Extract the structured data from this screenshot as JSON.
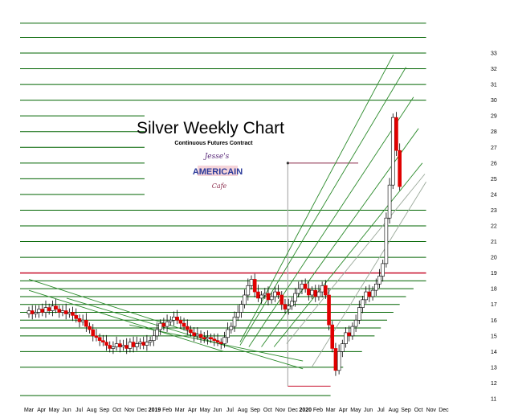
{
  "chart_data": {
    "type": "candlestick",
    "title": "Silver Weekly Chart",
    "subtitle": "Continuous Futures Contract",
    "logo": {
      "line1": "Jesse's",
      "line2": "AMERICAIN",
      "line3": "Cafe"
    },
    "y_axis": {
      "range": [
        11,
        33
      ],
      "ticks": [
        11,
        12,
        13,
        14,
        15,
        16,
        17,
        18,
        19,
        20,
        21,
        22,
        23,
        24,
        25,
        26,
        27,
        28,
        29,
        30,
        31,
        32,
        33
      ],
      "position": "right"
    },
    "x_axis": {
      "tick_labels": [
        "Mar",
        "Apr",
        "May",
        "Jun",
        "Jul",
        "Aug",
        "Sep",
        "Oct",
        "Nov",
        "Dec",
        "2019",
        "Feb",
        "Mar",
        "Apr",
        "May",
        "Jun",
        "Jul",
        "Aug",
        "Sep",
        "Oct",
        "Nov",
        "Dec",
        "2020",
        "Feb",
        "Mar",
        "Apr",
        "May",
        "Jun",
        "Jul",
        "Aug",
        "Sep",
        "Oct",
        "Nov",
        "Dec"
      ],
      "bold_labels": [
        "2019",
        "2020"
      ],
      "months_per_label": 1
    },
    "grid": false,
    "colors": {
      "up": "#ffffff",
      "down": "#e00000",
      "wick": "#000000",
      "level_line": "#006400",
      "resistance": "#c8102e",
      "marker": "#b0b0b0"
    },
    "weekly_closes": [
      16.6,
      16.4,
      16.5,
      16.7,
      16.5,
      16.8,
      16.6,
      16.9,
      16.7,
      16.5,
      16.6,
      16.4,
      16.5,
      16.3,
      16.1,
      15.9,
      16.0,
      15.6,
      15.4,
      15.0,
      14.9,
      14.7,
      14.6,
      14.4,
      14.2,
      14.3,
      14.5,
      14.3,
      14.4,
      14.2,
      14.6,
      14.3,
      14.5,
      14.6,
      14.4,
      14.6,
      14.7,
      15.0,
      15.4,
      15.8,
      15.6,
      15.9,
      16.0,
      16.2,
      16.0,
      15.8,
      15.6,
      15.4,
      15.2,
      15.0,
      15.1,
      14.9,
      14.8,
      14.9,
      14.8,
      14.7,
      14.6,
      14.5,
      14.9,
      15.4,
      15.6,
      16.2,
      16.5,
      17.0,
      17.6,
      18.2,
      18.6,
      17.8,
      17.4,
      17.6,
      17.7,
      17.3,
      17.5,
      17.8,
      17.6,
      17.0,
      16.7,
      16.9,
      17.2,
      17.7,
      18.0,
      18.3,
      18.0,
      17.6,
      17.9,
      17.5,
      17.8,
      18.2,
      17.6,
      15.7,
      14.2,
      12.8,
      14.0,
      14.5,
      15.2,
      15.0,
      15.6,
      16.0,
      16.8,
      17.3,
      17.8,
      17.5,
      17.9,
      18.3,
      18.8,
      19.6,
      22.5,
      24.6,
      28.9,
      26.8,
      24.5
    ],
    "weekly_opens": [
      16.4,
      16.6,
      16.4,
      16.5,
      16.7,
      16.5,
      16.8,
      16.6,
      16.9,
      16.7,
      16.5,
      16.6,
      16.4,
      16.5,
      16.3,
      16.1,
      15.9,
      16.0,
      15.6,
      15.4,
      15.0,
      14.9,
      14.7,
      14.6,
      14.4,
      14.2,
      14.3,
      14.5,
      14.3,
      14.4,
      14.2,
      14.6,
      14.3,
      14.5,
      14.6,
      14.4,
      14.6,
      14.7,
      15.0,
      15.4,
      15.8,
      15.6,
      15.9,
      16.0,
      16.2,
      16.0,
      15.8,
      15.6,
      15.4,
      15.2,
      15.0,
      15.1,
      14.9,
      14.8,
      14.9,
      14.8,
      14.7,
      14.6,
      14.5,
      14.9,
      15.4,
      15.6,
      16.2,
      16.5,
      17.0,
      17.6,
      18.2,
      18.6,
      17.8,
      17.4,
      17.6,
      17.7,
      17.3,
      17.5,
      17.8,
      17.6,
      17.0,
      16.7,
      16.9,
      17.2,
      17.7,
      18.0,
      18.3,
      18.0,
      17.6,
      17.9,
      17.5,
      17.8,
      18.2,
      17.6,
      15.7,
      14.2,
      12.8,
      14.0,
      14.5,
      15.2,
      15.0,
      15.6,
      16.0,
      16.8,
      17.3,
      17.8,
      17.5,
      17.9,
      18.3,
      18.8,
      19.6,
      22.5,
      24.6,
      28.9,
      26.8
    ],
    "horizontal_levels": [
      {
        "y": 34.9,
        "x_end_month": 31.6
      },
      {
        "y": 34.0,
        "x_end_month": 31.6
      },
      {
        "y": 33.0,
        "x_end_month": 31.6
      },
      {
        "y": 32.0,
        "x_end_month": 31.6
      },
      {
        "y": 31.0,
        "x_end_month": 31.6
      },
      {
        "y": 30.0,
        "x_end_month": 31.6
      },
      {
        "y": 29.0,
        "x_end_month": 9.2
      },
      {
        "y": 28.0,
        "x_end_month": 9.2
      },
      {
        "y": 27.0,
        "x_end_month": 9.2
      },
      {
        "y": 26.0,
        "x_end_month": 9.2
      },
      {
        "y": 25.0,
        "x_end_month": 9.2
      },
      {
        "y": 24.0,
        "x_end_month": 9.2
      },
      {
        "y": 23.0,
        "x_end_month": 31.6
      },
      {
        "y": 22.0,
        "x_end_month": 31.6
      },
      {
        "y": 21.0,
        "x_end_month": 31.6
      },
      {
        "y": 20.0,
        "x_end_month": 31.6
      },
      {
        "y": 18.5,
        "x_end_month": 31.6
      },
      {
        "y": 18.0,
        "x_end_month": 30.6
      },
      {
        "y": 17.5,
        "x_end_month": 30.0
      },
      {
        "y": 17.0,
        "x_end_month": 29.5
      },
      {
        "y": 16.5,
        "x_end_month": 29.0
      },
      {
        "y": 16.0,
        "x_end_month": 28.5
      },
      {
        "y": 15.5,
        "x_end_month": 28.0
      },
      {
        "y": 15.0,
        "x_end_month": 27.5
      },
      {
        "y": 14.0,
        "x_end_month": 26.5
      },
      {
        "y": 13.0,
        "x_end_month": 25.0
      },
      {
        "y": 11.2,
        "x_end_month": 24.0
      }
    ],
    "resistance_level": {
      "y": 19.0,
      "from_month": 0.0,
      "to_month": 31.6
    },
    "annotation_level": {
      "y": 26.0,
      "from_month": 20.6,
      "to_month": 26.2
    },
    "low_marker": {
      "y": 11.8,
      "from_month": 20.6,
      "to_month": 24.0
    },
    "channels_up": [
      {
        "x1": 16.8,
        "y1": 14.6,
        "x2": 29.0,
        "y2": 32.9
      },
      {
        "x1": 16.8,
        "y1": 14.4,
        "x2": 30.0,
        "y2": 32.1
      },
      {
        "x1": 17.5,
        "y1": 14.3,
        "x2": 30.6,
        "y2": 30.2
      },
      {
        "x1": 18.5,
        "y1": 14.3,
        "x2": 31.0,
        "y2": 28.2
      },
      {
        "x1": 19.5,
        "y1": 14.3,
        "x2": 31.3,
        "y2": 26.0
      },
      {
        "x1": 20.5,
        "y1": 14.5,
        "x2": 31.5,
        "y2": 25.3
      },
      {
        "x1": 22.5,
        "y1": 13.0,
        "x2": 31.6,
        "y2": 24.8
      }
    ],
    "channels_down": [
      {
        "x1": 0.0,
        "y1": 18.6,
        "x2": 15.0,
        "y2": 14.7
      },
      {
        "x1": 0.0,
        "y1": 17.9,
        "x2": 15.5,
        "y2": 14.0
      },
      {
        "x1": 3.0,
        "y1": 17.4,
        "x2": 21.8,
        "y2": 12.9
      },
      {
        "x1": 8.0,
        "y1": 15.7,
        "x2": 21.8,
        "y2": 13.4
      }
    ]
  }
}
